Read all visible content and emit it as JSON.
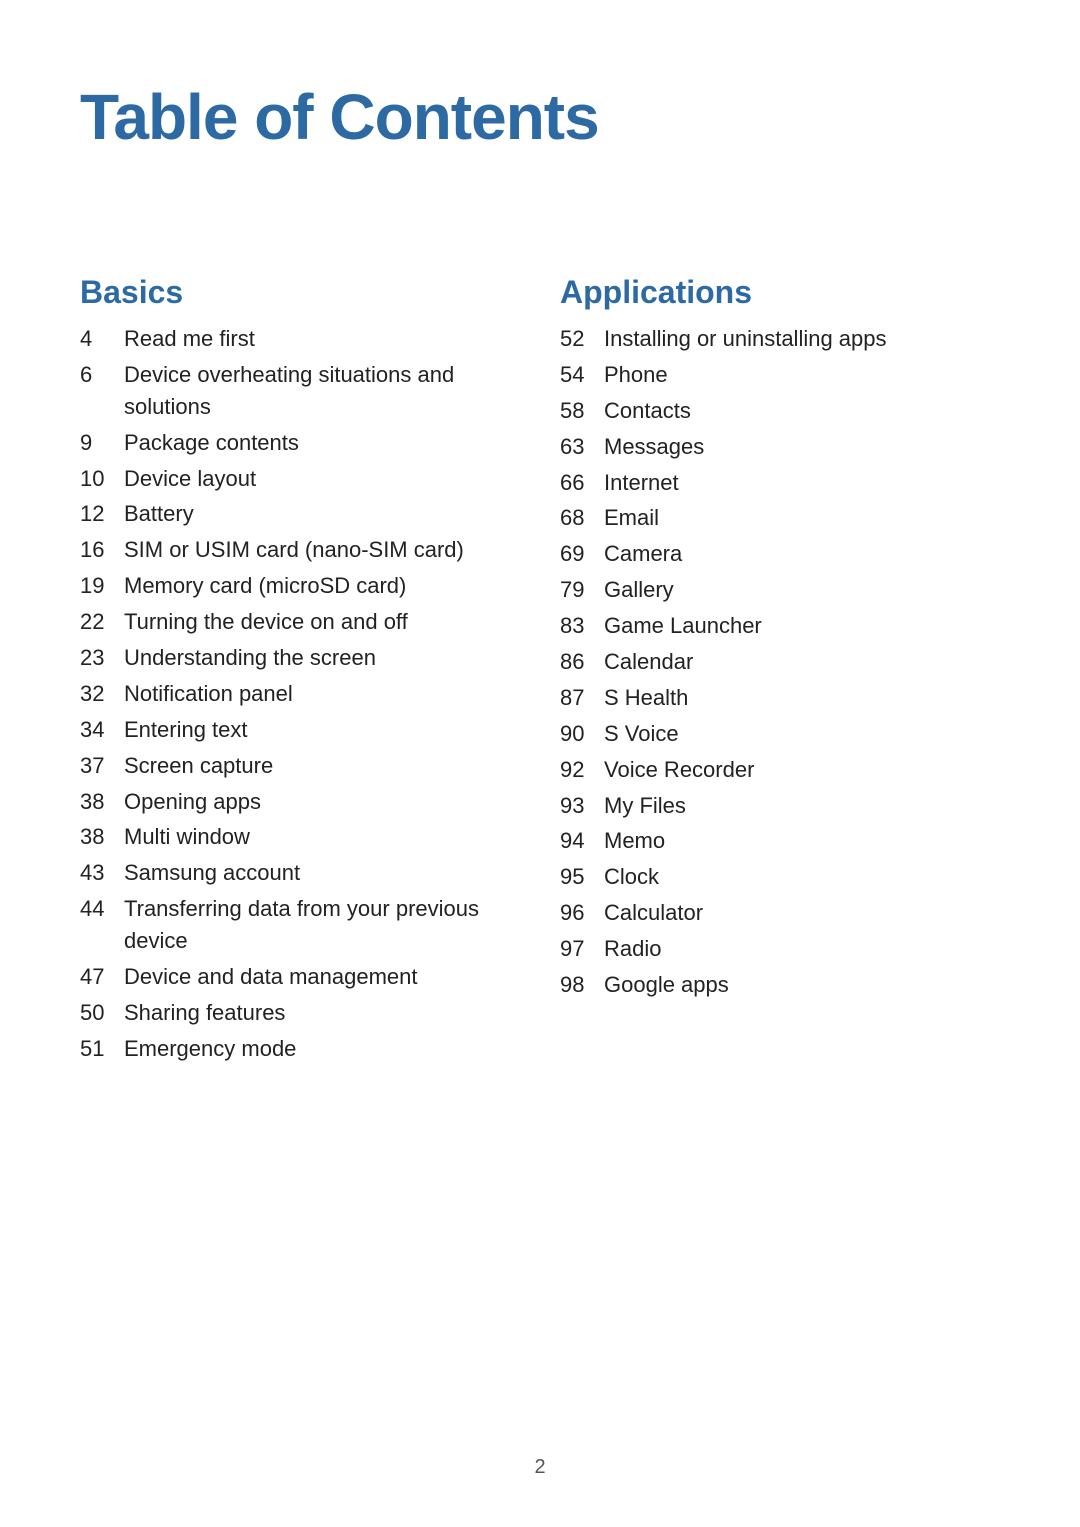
{
  "title": "Table of Contents",
  "page_number": "2",
  "colors": {
    "heading": "#2d6aa3",
    "text": "#222222",
    "background": "#ffffff"
  },
  "typography": {
    "title_fontsize": 64,
    "section_fontsize": 32,
    "row_fontsize": 22
  },
  "sections": [
    {
      "heading": "Basics",
      "items": [
        {
          "page": "4",
          "label": "Read me first"
        },
        {
          "page": "6",
          "label": "Device overheating situations and solutions"
        },
        {
          "page": "9",
          "label": "Package contents"
        },
        {
          "page": "10",
          "label": "Device layout"
        },
        {
          "page": "12",
          "label": "Battery"
        },
        {
          "page": "16",
          "label": "SIM or USIM card (nano-SIM card)"
        },
        {
          "page": "19",
          "label": "Memory card (microSD card)"
        },
        {
          "page": "22",
          "label": "Turning the device on and off"
        },
        {
          "page": "23",
          "label": "Understanding the screen"
        },
        {
          "page": "32",
          "label": "Notification panel"
        },
        {
          "page": "34",
          "label": "Entering text"
        },
        {
          "page": "37",
          "label": "Screen capture"
        },
        {
          "page": "38",
          "label": "Opening apps"
        },
        {
          "page": "38",
          "label": "Multi window"
        },
        {
          "page": "43",
          "label": "Samsung account"
        },
        {
          "page": "44",
          "label": "Transferring data from your previous device"
        },
        {
          "page": "47",
          "label": "Device and data management"
        },
        {
          "page": "50",
          "label": "Sharing features"
        },
        {
          "page": "51",
          "label": "Emergency mode"
        }
      ]
    },
    {
      "heading": "Applications",
      "items": [
        {
          "page": "52",
          "label": "Installing or uninstalling apps"
        },
        {
          "page": "54",
          "label": "Phone"
        },
        {
          "page": "58",
          "label": "Contacts"
        },
        {
          "page": "63",
          "label": "Messages"
        },
        {
          "page": "66",
          "label": "Internet"
        },
        {
          "page": "68",
          "label": "Email"
        },
        {
          "page": "69",
          "label": "Camera"
        },
        {
          "page": "79",
          "label": "Gallery"
        },
        {
          "page": "83",
          "label": "Game Launcher"
        },
        {
          "page": "86",
          "label": "Calendar"
        },
        {
          "page": "87",
          "label": "S Health"
        },
        {
          "page": "90",
          "label": "S Voice"
        },
        {
          "page": "92",
          "label": "Voice Recorder"
        },
        {
          "page": "93",
          "label": "My Files"
        },
        {
          "page": "94",
          "label": "Memo"
        },
        {
          "page": "95",
          "label": "Clock"
        },
        {
          "page": "96",
          "label": "Calculator"
        },
        {
          "page": "97",
          "label": "Radio"
        },
        {
          "page": "98",
          "label": "Google apps"
        }
      ]
    }
  ]
}
